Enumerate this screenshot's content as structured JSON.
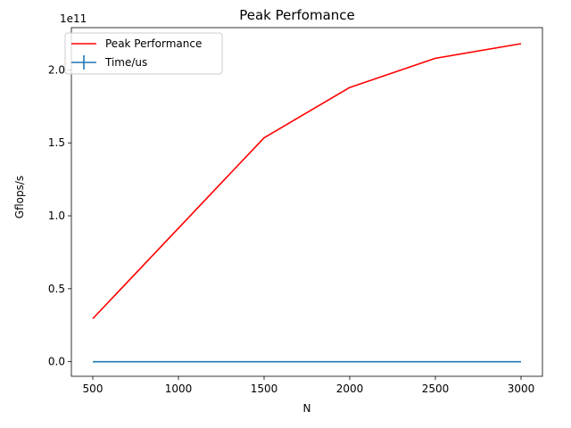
{
  "chart_data": {
    "type": "line",
    "title": "Peak Perfomance",
    "xlabel": "N",
    "ylabel": "Gflops/s",
    "offset_text": "1e11",
    "x": [
      500,
      1000,
      1500,
      2000,
      2500,
      3000
    ],
    "series": [
      {
        "name": "Peak Performance",
        "color": "#ff0000",
        "style": "line",
        "values": [
          29500000000,
          91500000000,
          153500000000,
          188000000000,
          208000000000,
          218000000000
        ]
      },
      {
        "name": "Time/us",
        "color": "#1f77b4",
        "style": "errorbar",
        "values": [
          0,
          0,
          0,
          0,
          0,
          0
        ]
      }
    ],
    "xlim": [
      375,
      3125
    ],
    "ylim": [
      -10000000000,
      229000000000
    ],
    "x_ticks": [
      500,
      1000,
      1500,
      2000,
      2500,
      3000
    ],
    "x_tick_labels": [
      "500",
      "1000",
      "1500",
      "2000",
      "2500",
      "3000"
    ],
    "y_ticks": [
      0,
      50000000000,
      100000000000,
      150000000000,
      200000000000
    ],
    "y_tick_labels": [
      "0.0",
      "0.5",
      "1.0",
      "1.5",
      "2.0"
    ],
    "grid": false,
    "legend_position": "upper-left"
  }
}
